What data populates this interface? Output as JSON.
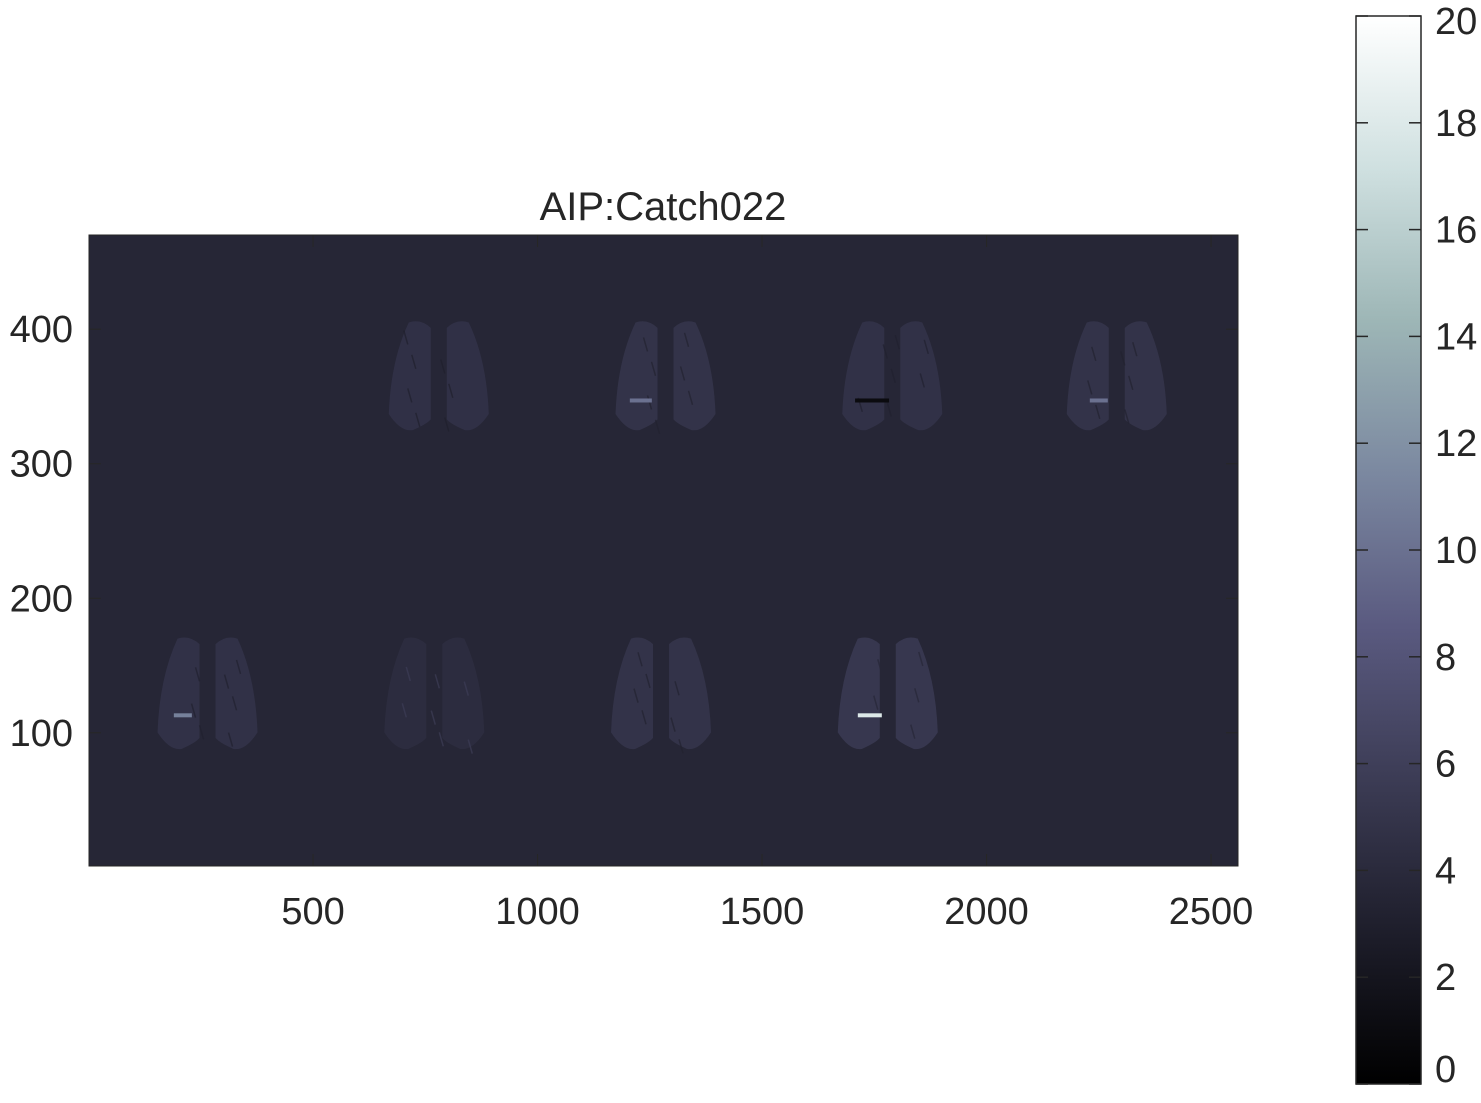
{
  "chart_data": {
    "type": "heatmap",
    "title": "AIP:Catch022",
    "xlabel": "",
    "ylabel": "",
    "xlim": [
      1,
      2560
    ],
    "ylim": [
      1,
      470
    ],
    "x_ticks": [
      500,
      1000,
      1500,
      2000,
      2500
    ],
    "y_ticks": [
      100,
      200,
      300,
      400
    ],
    "colormap": "bone",
    "colormap_stops": [
      "#000000",
      "#1e1e2b",
      "#3c3c55",
      "#5a5a80",
      "#7b88a0",
      "#9db6b6",
      "#cfe0e0",
      "#ffffff"
    ],
    "background_value": 3.6,
    "colorbar": {
      "range": [
        0,
        20
      ],
      "ticks": [
        0,
        2,
        4,
        6,
        8,
        10,
        12,
        14,
        16,
        18,
        20
      ],
      "placement": "right"
    },
    "panels": [
      {
        "row": "top",
        "center_x": 780,
        "y_range": [
          325,
          405
        ],
        "mean_value": 4.8,
        "features": [
          "faint texture"
        ]
      },
      {
        "row": "top",
        "center_x": 1285,
        "y_range": [
          325,
          405
        ],
        "mean_value": 5.0,
        "features": [
          "dark streaks",
          "bright line near y=347"
        ]
      },
      {
        "row": "top",
        "center_x": 1790,
        "y_range": [
          325,
          405
        ],
        "mean_value": 4.9,
        "features": [
          "dark band near y=347"
        ]
      },
      {
        "row": "top",
        "center_x": 2290,
        "y_range": [
          325,
          405
        ],
        "mean_value": 5.0,
        "features": [
          "bright line near y=347"
        ]
      },
      {
        "row": "bottom",
        "center_x": 265,
        "y_range": [
          88,
          170
        ],
        "mean_value": 4.9,
        "features": [
          "bright line near y=113"
        ]
      },
      {
        "row": "bottom",
        "center_x": 770,
        "y_range": [
          88,
          170
        ],
        "mean_value": 4.3,
        "features": [
          "dark speckles"
        ]
      },
      {
        "row": "bottom",
        "center_x": 1275,
        "y_range": [
          88,
          170
        ],
        "mean_value": 5.0,
        "features": [
          "faint texture"
        ]
      },
      {
        "row": "bottom",
        "center_x": 1780,
        "y_range": [
          88,
          170
        ],
        "mean_value": 5.5,
        "features": [
          "bright hotspot near y=113, value ~18"
        ]
      }
    ]
  }
}
